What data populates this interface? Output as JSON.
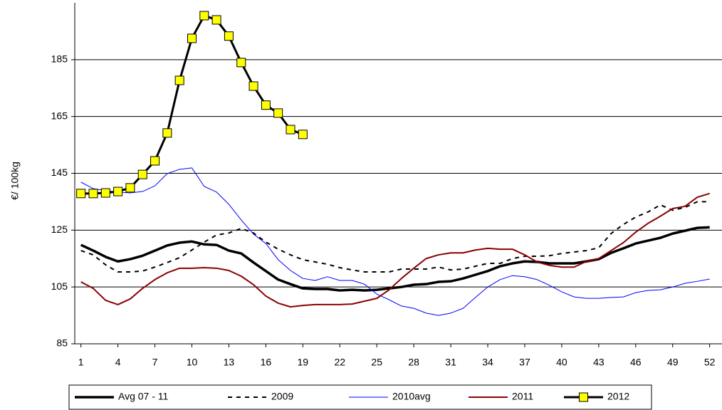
{
  "chart_data": {
    "type": "line",
    "ylabel": "€/ 100kg",
    "x": [
      1,
      2,
      3,
      4,
      5,
      6,
      7,
      8,
      9,
      10,
      11,
      12,
      13,
      14,
      15,
      16,
      17,
      18,
      19,
      20,
      21,
      22,
      23,
      24,
      25,
      26,
      27,
      28,
      29,
      30,
      31,
      32,
      33,
      34,
      35,
      36,
      37,
      38,
      39,
      40,
      41,
      42,
      43,
      44,
      45,
      46,
      47,
      48,
      49,
      50,
      51,
      52
    ],
    "xlim": [
      0.5,
      53
    ],
    "xticks": [
      1,
      4,
      7,
      10,
      13,
      16,
      19,
      22,
      25,
      28,
      31,
      34,
      37,
      40,
      43,
      46,
      49,
      52
    ],
    "ylim": [
      85,
      205
    ],
    "yticks": [
      85,
      105,
      125,
      145,
      165,
      185
    ],
    "grid": true,
    "legend": "bottom",
    "series": [
      {
        "name": "Avg 07 - 11",
        "color": "#000000",
        "values": [
          119.8,
          117.8,
          115.6,
          114,
          114.8,
          116,
          117.8,
          119.6,
          120.6,
          121,
          120,
          119.8,
          117.8,
          116.8,
          113.6,
          110.6,
          107.6,
          106,
          104.5,
          104.3,
          104.3,
          103.8,
          104,
          103.8,
          104,
          104.5,
          105,
          105.8,
          106,
          106.8,
          107,
          108,
          109.3,
          110.6,
          112.3,
          113.3,
          114,
          113.8,
          113.3,
          113.3,
          113.3,
          114,
          114.8,
          117,
          118.6,
          120.3,
          121.3,
          122.3,
          123.8,
          124.8,
          125.8,
          126
        ]
      },
      {
        "name": "2009",
        "color": "#000000",
        "dash": true,
        "values": [
          117.8,
          116.3,
          112.8,
          110.3,
          110.3,
          110.6,
          112,
          113.6,
          115.3,
          118,
          120.8,
          123.3,
          124,
          125.6,
          124,
          120.8,
          118.3,
          116.3,
          114.6,
          113.8,
          113,
          111.8,
          111,
          110.3,
          110.3,
          110.3,
          111.3,
          111.3,
          111.3,
          112,
          111,
          111.3,
          112.3,
          113.3,
          113.3,
          115,
          115.8,
          115.8,
          116,
          116.8,
          117.3,
          117.8,
          118.8,
          123.8,
          127,
          129.6,
          131.4,
          133.9,
          132,
          133,
          135,
          135
        ]
      },
      {
        "name": "2010avg",
        "color": "#0000ff",
        "values": [
          141.9,
          139.6,
          138.9,
          138.4,
          138.1,
          138.6,
          140.6,
          144.9,
          146.4,
          146.9,
          140.4,
          138.4,
          134.1,
          128.6,
          123.6,
          120.3,
          114.6,
          110.8,
          108,
          107.3,
          108.6,
          107.3,
          107.3,
          106,
          102.5,
          100.5,
          98.3,
          97.5,
          95.8,
          95,
          95.8,
          97.5,
          101.3,
          105,
          107.6,
          109,
          108.6,
          107.6,
          105.6,
          103.3,
          101.5,
          101,
          101,
          101.3,
          101.5,
          103,
          103.8,
          104,
          105,
          106.3,
          107,
          107.8
        ]
      },
      {
        "name": "2011",
        "color": "#8b0000",
        "values": [
          106.8,
          104.5,
          100.3,
          98.8,
          100.8,
          104.5,
          107.6,
          110,
          111.6,
          111.6,
          111.8,
          111.6,
          110.8,
          108.8,
          105.8,
          101.8,
          99.3,
          98,
          98.5,
          98.8,
          98.8,
          98.8,
          99,
          100,
          101,
          104,
          108,
          111.6,
          115,
          116.3,
          117,
          117,
          118,
          118.6,
          118.3,
          118.3,
          116.3,
          113.8,
          112.6,
          112,
          112,
          114,
          115,
          117.8,
          120.6,
          124.3,
          127.4,
          129.9,
          132.6,
          133.4,
          136.6,
          137.9
        ]
      },
      {
        "name": "2012",
        "color": "#000000",
        "marker": "square",
        "marker_color": "#ffff00",
        "values": [
          137.9,
          137.9,
          138.1,
          138.6,
          139.9,
          144.6,
          149.4,
          159.2,
          177.7,
          192.5,
          200.5,
          199,
          193.3,
          184,
          175.7,
          169,
          166.2,
          160.4,
          158.7,
          null,
          null,
          null,
          null,
          null,
          null,
          null,
          null,
          null,
          null,
          null,
          null,
          null,
          null,
          null,
          null,
          null,
          null,
          null,
          null,
          null,
          null,
          null,
          null,
          null,
          null,
          null,
          null,
          null,
          null,
          null,
          null,
          null
        ]
      }
    ]
  }
}
